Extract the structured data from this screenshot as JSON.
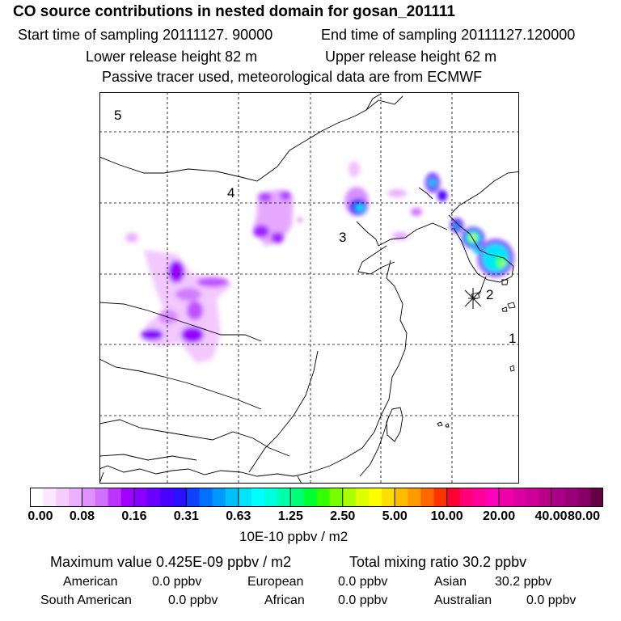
{
  "header": {
    "title": "CO  source contributions in nested domain for gosan_201111",
    "start_label": "Start time of sampling 20111127. 90000",
    "end_label": "End time of sampling 20111127.120000",
    "lower_label": "Lower release height   82 m",
    "upper_label": "Upper release height   62 m",
    "note": "Passive tracer used, meteorological data are from ECMWF"
  },
  "map": {
    "region_labels": [
      "1",
      "2",
      "3",
      "4",
      "5"
    ],
    "receptor": "gosan"
  },
  "colorbar": {
    "ticks": [
      "0.00",
      "0.08",
      "0.16",
      "0.31",
      "0.63",
      "1.25",
      "2.50",
      "5.00",
      "10.00",
      "20.00",
      "40.00",
      "80.00"
    ],
    "unit": "10E-10 ppbv / m2",
    "colors": [
      "#ffffff",
      "#fbe8ff",
      "#f4ccff",
      "#eab0ff",
      "#e090ff",
      "#d070ff",
      "#bb33ff",
      "#a000ff",
      "#8800ff",
      "#6a00ff",
      "#4a00ff",
      "#2a10ff",
      "#1040ff",
      "#0070ff",
      "#0098ff",
      "#00c0ff",
      "#00e4ff",
      "#00ffff",
      "#00ffdd",
      "#00ffaa",
      "#00ff77",
      "#00ff33",
      "#33ff00",
      "#77ff00",
      "#aaff00",
      "#ddff00",
      "#ffff00",
      "#ffdd00",
      "#ffbb00",
      "#ff9900",
      "#ff6600",
      "#ff3300",
      "#ff0033",
      "#ff0077",
      "#ff0099",
      "#ff00bb",
      "#ee00aa",
      "#dd00a0",
      "#cc0099",
      "#bb0088",
      "#aa0088",
      "#990077",
      "#880066",
      "#660044"
    ]
  },
  "summary": {
    "max_label": "Maximum value  0.425E-09 ppbv / m2",
    "total_label": "Total mixing ratio       30.2 ppbv",
    "regions": [
      {
        "name": "American",
        "value": "0.0 ppbv"
      },
      {
        "name": "European",
        "value": "0.0 ppbv"
      },
      {
        "name": "Asian",
        "value": "30.2 ppbv"
      },
      {
        "name": "South American",
        "value": "0.0 ppbv"
      },
      {
        "name": "African",
        "value": "0.0 ppbv"
      },
      {
        "name": "Australian",
        "value": "0.0 ppbv"
      }
    ]
  }
}
